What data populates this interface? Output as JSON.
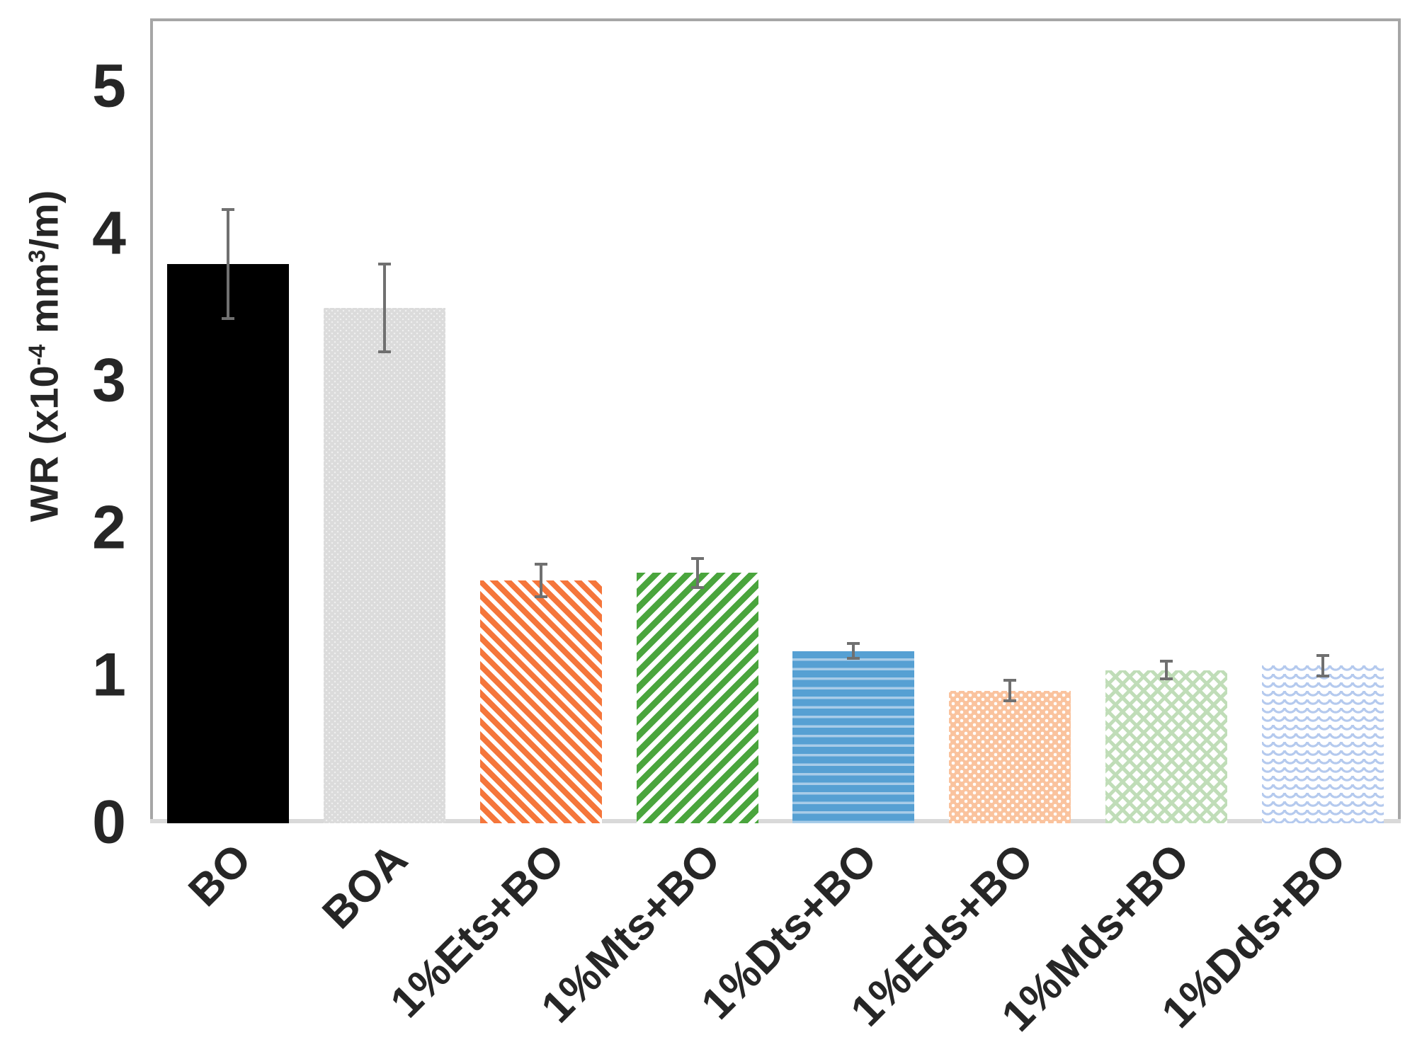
{
  "figure": {
    "ylabel": {
      "prefix": "WR (x10",
      "sup1": "-4",
      "mid": " mm",
      "sup2": "3",
      "suffix": "/m)"
    }
  },
  "chart_data": {
    "type": "bar",
    "title": "",
    "xlabel": "",
    "ylabel": "WR (x10^-4 mm^3/m)",
    "categories": [
      "BO",
      "BOA",
      "1%Ets+BO",
      "1%Mts+BO",
      "1%Dts+BO",
      "1%Eds+BO",
      "1%Mds+BO",
      "1%Dds+BO"
    ],
    "values": [
      3.8,
      3.5,
      1.65,
      1.7,
      1.17,
      0.9,
      1.04,
      1.07
    ],
    "errors": [
      0.38,
      0.31,
      0.12,
      0.11,
      0.06,
      0.08,
      0.07,
      0.08
    ],
    "yticks": [
      "0",
      "1",
      "2",
      "3",
      "4",
      "5"
    ],
    "ylim": [
      0,
      5.45
    ],
    "grid": false,
    "legend": false,
    "bar_styles": [
      {
        "label": "BO",
        "pattern": "solid",
        "fill": "#000000"
      },
      {
        "label": "BOA",
        "pattern": "solid-textured",
        "fill": "#DBDBDB"
      },
      {
        "label": "1%Ets+BO",
        "pattern": "diagonal-down",
        "fill": "#F5763B"
      },
      {
        "label": "1%Mts+BO",
        "pattern": "diagonal-up",
        "fill": "#4AA53D"
      },
      {
        "label": "1%Dts+BO",
        "pattern": "horizontal-stripes",
        "fill": "#56A0D3",
        "fill2": "#A8CCE8"
      },
      {
        "label": "1%Eds+BO",
        "pattern": "checker-dots",
        "fill": "#FAC39E"
      },
      {
        "label": "1%Mds+BO",
        "pattern": "herringbone",
        "fill": "#C0DDB8"
      },
      {
        "label": "1%Dds+BO",
        "pattern": "waves",
        "fill": "#B5CAEE"
      }
    ],
    "error_bar_color": "#707070",
    "frame_color": "#A6A6A6",
    "baseline_color": "#D9D9D9",
    "text_color": "#262626"
  }
}
